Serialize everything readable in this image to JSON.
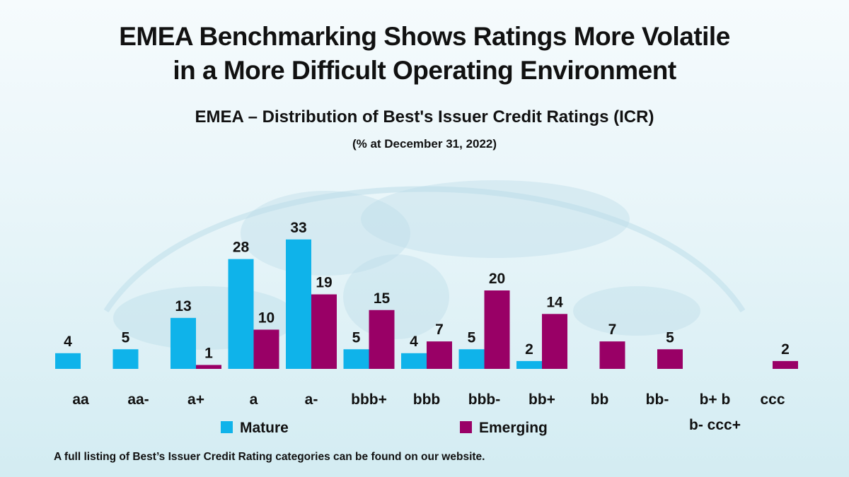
{
  "title_line1": "EMEA Benchmarking Shows Ratings More Volatile",
  "title_line2": "in a More Difficult Operating Environment",
  "footnote": "A full listing of Best’s Issuer Credit Rating categories can be found on our website.",
  "chart_data": {
    "type": "bar",
    "title": "EMEA – Distribution of Best's Issuer Credit Ratings (ICR)",
    "subtitle": "(% at December 31, 2022)",
    "xlabel": "",
    "ylabel": "",
    "ylim": [
      0,
      35
    ],
    "grid": false,
    "legend_position": "bottom",
    "categories": [
      "aa",
      "aa-",
      "a+",
      "a",
      "a-",
      "bbb+",
      "bbb",
      "bbb-",
      "bb+",
      "bb",
      "bb-",
      "b+ b b- ccc+",
      "ccc"
    ],
    "category_lines": [
      [
        "aa"
      ],
      [
        "aa-"
      ],
      [
        "a+"
      ],
      [
        "a"
      ],
      [
        "a-"
      ],
      [
        "bbb+"
      ],
      [
        "bbb"
      ],
      [
        "bbb-"
      ],
      [
        "bb+"
      ],
      [
        "bb"
      ],
      [
        "bb-"
      ],
      [
        "b+ b",
        "b- ccc+"
      ],
      [
        "ccc"
      ]
    ],
    "series": [
      {
        "name": "Mature",
        "color": "#0fb3ea",
        "values": [
          4,
          5,
          13,
          28,
          33,
          5,
          4,
          5,
          2,
          null,
          null,
          null,
          null
        ]
      },
      {
        "name": "Emerging",
        "color": "#990066",
        "values": [
          null,
          null,
          1,
          10,
          19,
          15,
          7,
          20,
          14,
          7,
          5,
          null,
          2
        ]
      }
    ]
  }
}
